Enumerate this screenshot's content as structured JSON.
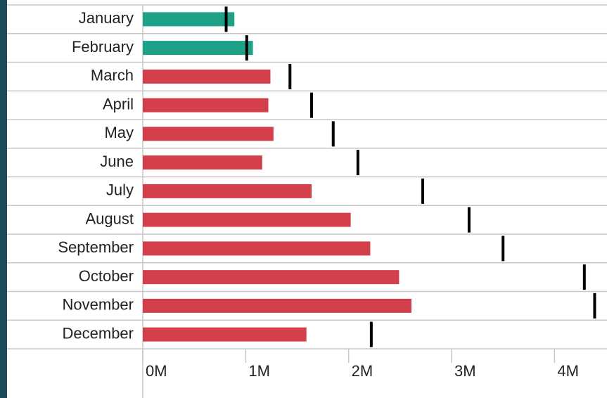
{
  "chart_data": {
    "type": "bullet",
    "categories": [
      "January",
      "February",
      "March",
      "April",
      "May",
      "June",
      "July",
      "August",
      "September",
      "October",
      "November",
      "December"
    ],
    "values": [
      890000,
      1070000,
      1240000,
      1220000,
      1270000,
      1160000,
      1640000,
      2020000,
      2210000,
      2490000,
      2610000,
      1590000
    ],
    "targets": [
      810000,
      1010000,
      1430000,
      1640000,
      1850000,
      2090000,
      2720000,
      3170000,
      3500000,
      4290000,
      4390000,
      2220000
    ],
    "above_color": "#1fa187",
    "below_color": "#d3404c",
    "target_color": "#000000",
    "xlim": [
      0,
      4510000
    ],
    "xticks": [
      {
        "value": 0,
        "label": "0M"
      },
      {
        "value": 1000000,
        "label": "1M"
      },
      {
        "value": 2000000,
        "label": "2M"
      },
      {
        "value": 3000000,
        "label": "3M"
      },
      {
        "value": 4000000,
        "label": "4M"
      }
    ]
  }
}
